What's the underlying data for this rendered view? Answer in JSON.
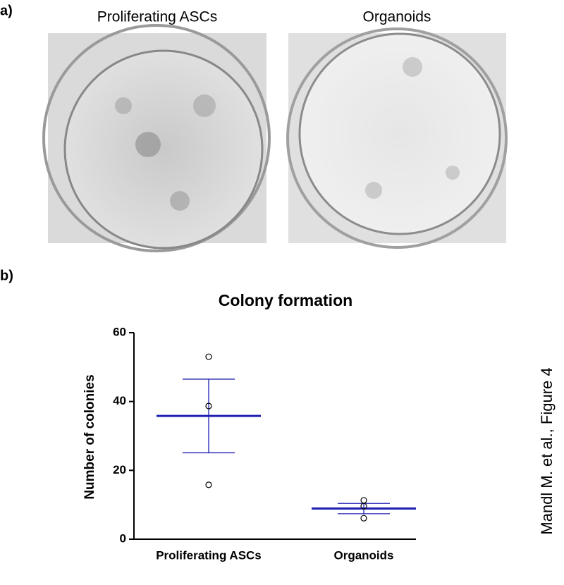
{
  "figure": {
    "panel_a_label": "a)",
    "image_titles": [
      "Proliferating  ASCs",
      "Organoids"
    ],
    "panel_b_label": "b)",
    "side_note": "Mandl M. et al., Figure 4"
  },
  "chart_data": {
    "type": "dot",
    "title": "Colony formation",
    "y_label": "Number of colonies",
    "categories": [
      "Proliferating ASCs",
      "Organoids"
    ],
    "points": [
      [
        53,
        38.7,
        15.8
      ],
      [
        11.3,
        9.6,
        6.1
      ]
    ],
    "means": [
      35.8,
      8.9
    ],
    "errors": [
      10.7,
      1.5
    ],
    "color": "#1f1fb4",
    "ylim": [
      0,
      60
    ],
    "yticks": [
      0,
      20,
      40,
      60
    ]
  }
}
